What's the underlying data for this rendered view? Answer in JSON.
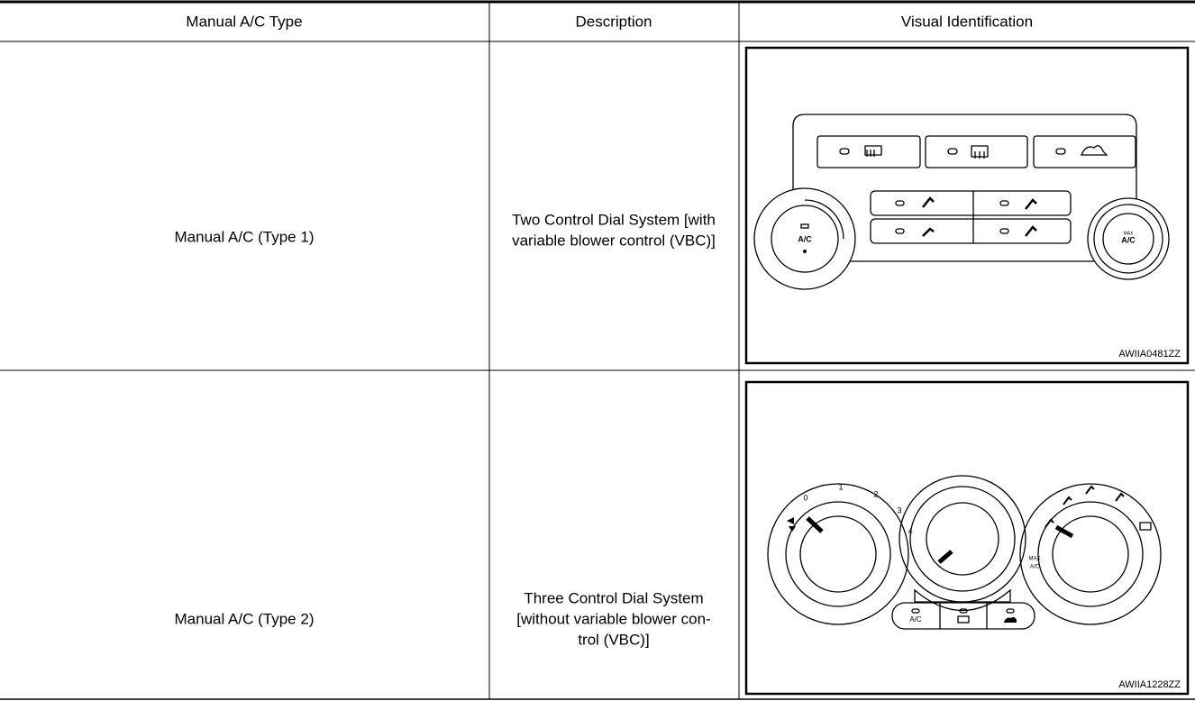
{
  "table": {
    "header": [
      "Manual A/C Type",
      "Description",
      "Visual Identification"
    ],
    "rows": [
      {
        "type": "Manual A/C (Type 1)",
        "description": [
          "Two Control Dial System [with",
          "variable blower control (VBC)]"
        ],
        "figure": {
          "left_dial": "A/C",
          "right_dial_top": "MAX",
          "right_dial_bottom": "A/C",
          "code": "AWIIA0481ZZ"
        }
      },
      {
        "type": "Manual A/C (Type 2)",
        "description": [
          "Three Control Dial System",
          "[without variable blower con-",
          "trol (VBC)]"
        ],
        "figure": {
          "fan_speeds": [
            "0",
            "1",
            "2",
            "3",
            "4"
          ],
          "mode_top": "MAX",
          "mode_bottom": "A/C",
          "button": "A/C",
          "code": "AWIIA1228ZZ"
        }
      }
    ]
  }
}
